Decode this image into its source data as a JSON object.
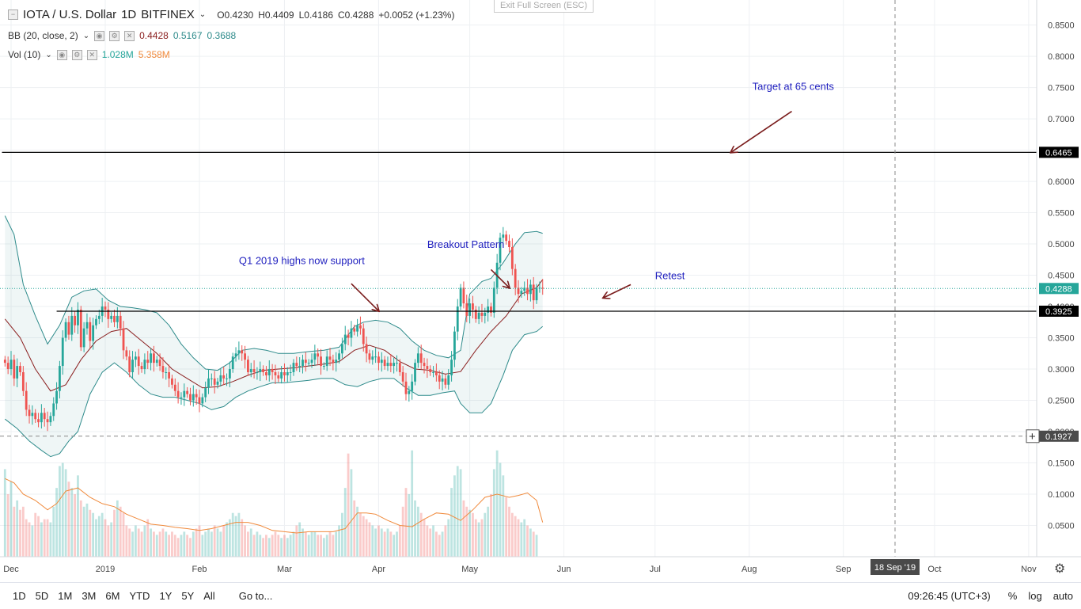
{
  "header": {
    "symbol": "IOTA / U.S. Dollar",
    "interval": "1D",
    "exchange": "BITFINEX",
    "open": "O0.4230",
    "high": "H0.4409",
    "low": "L0.4186",
    "close": "C0.4288",
    "change": "+0.0052 (+1.23%)",
    "exit_fullscreen": "Exit Full Screen (ESC)"
  },
  "indicators": {
    "bb": {
      "label": "BB (20, close, 2)",
      "v1": "0.4428",
      "v2": "0.5167",
      "v3": "0.3688"
    },
    "vol": {
      "label": "Vol (10)",
      "v1": "1.028M",
      "v2": "5.358M"
    }
  },
  "annotations": {
    "target": "Target at 65 cents",
    "breakout": "Breakout Pattern",
    "q1": "Q1 2019 highs now support",
    "retest": "Retest"
  },
  "bottom_bar": {
    "timeframes": [
      "1D",
      "5D",
      "1M",
      "3M",
      "6M",
      "YTD",
      "1Y",
      "5Y",
      "All"
    ],
    "goto": "Go to...",
    "time": "09:26:45 (UTC+3)",
    "percent": "%",
    "log": "log",
    "auto": "auto"
  },
  "colors": {
    "up": "#26a69a",
    "down": "#ef5350",
    "band": "#2e8b8b",
    "basis": "#8b2020",
    "vol_ma": "#f08a3c",
    "annotation": "#1f1fbf",
    "arrow": "#7a1c1c"
  },
  "chart_data": {
    "type": "candlestick",
    "y_range": [
      0.0,
      0.89
    ],
    "y_ticks": [
      "0.8500",
      "0.8000",
      "0.7500",
      "0.7000",
      "0.6500",
      "0.6000",
      "0.5500",
      "0.5000",
      "0.4500",
      "0.4000",
      "0.3500",
      "0.3000",
      "0.2500",
      "0.2000",
      "0.1500",
      "0.1000",
      "0.0500"
    ],
    "x_ticks": [
      "Dec",
      "2019",
      "Feb",
      "Mar",
      "Apr",
      "May",
      "Jun",
      "Jul",
      "Aug",
      "Sep",
      "Oct",
      "Nov"
    ],
    "x_tick_dates": [
      "2018-12-01",
      "2019-01-01",
      "2019-02-01",
      "2019-03-01",
      "2019-04-01",
      "2019-05-01",
      "2019-06-01",
      "2019-07-01",
      "2019-08-01",
      "2019-09-01",
      "2019-10-01",
      "2019-11-01"
    ],
    "crosshair_date_label": "18 Sep '19",
    "crosshair_price_label": "0.1927",
    "crosshair_date": "2019-09-18",
    "crosshair_price": 0.1927,
    "last_price_label": "0.4288",
    "last_price": 0.4288,
    "levels": [
      {
        "price": 0.6465,
        "label": "0.6465",
        "from": "2018-11-28",
        "to": "2019-11-10"
      },
      {
        "price": 0.3925,
        "label": "0.3925",
        "from": "2018-12-16",
        "to": "2019-11-10"
      }
    ],
    "candle_start": "2018-11-29",
    "closes": [
      0.31,
      0.3,
      0.315,
      0.285,
      0.305,
      0.295,
      0.265,
      0.235,
      0.225,
      0.23,
      0.22,
      0.215,
      0.23,
      0.22,
      0.215,
      0.225,
      0.245,
      0.265,
      0.305,
      0.35,
      0.375,
      0.355,
      0.385,
      0.37,
      0.395,
      0.335,
      0.365,
      0.375,
      0.345,
      0.37,
      0.38,
      0.385,
      0.4,
      0.395,
      0.38,
      0.385,
      0.375,
      0.385,
      0.365,
      0.33,
      0.32,
      0.295,
      0.315,
      0.32,
      0.305,
      0.3,
      0.315,
      0.31,
      0.325,
      0.31,
      0.315,
      0.305,
      0.295,
      0.295,
      0.285,
      0.275,
      0.265,
      0.255,
      0.255,
      0.265,
      0.26,
      0.25,
      0.26,
      0.255,
      0.245,
      0.255,
      0.27,
      0.285,
      0.285,
      0.275,
      0.28,
      0.29,
      0.285,
      0.285,
      0.3,
      0.32,
      0.325,
      0.33,
      0.325,
      0.315,
      0.295,
      0.3,
      0.295,
      0.295,
      0.3,
      0.295,
      0.29,
      0.3,
      0.295,
      0.29,
      0.285,
      0.295,
      0.29,
      0.295,
      0.295,
      0.31,
      0.305,
      0.305,
      0.315,
      0.31,
      0.31,
      0.315,
      0.325,
      0.32,
      0.305,
      0.305,
      0.32,
      0.315,
      0.31,
      0.315,
      0.325,
      0.34,
      0.355,
      0.35,
      0.365,
      0.36,
      0.37,
      0.365,
      0.34,
      0.325,
      0.315,
      0.32,
      0.32,
      0.31,
      0.315,
      0.305,
      0.31,
      0.305,
      0.31,
      0.31,
      0.295,
      0.28,
      0.26,
      0.265,
      0.28,
      0.31,
      0.325,
      0.31,
      0.305,
      0.3,
      0.295,
      0.295,
      0.29,
      0.28,
      0.285,
      0.275,
      0.29,
      0.315,
      0.36,
      0.4,
      0.43,
      0.405,
      0.385,
      0.405,
      0.395,
      0.38,
      0.39,
      0.385,
      0.39,
      0.4,
      0.39,
      0.43,
      0.47,
      0.51,
      0.515,
      0.505,
      0.495,
      0.46,
      0.43,
      0.42,
      0.425,
      0.43,
      0.42,
      0.435,
      0.41,
      0.43,
      0.43,
      0.4288
    ],
    "basis": [
      [
        0,
        0.38
      ],
      [
        5,
        0.35
      ],
      [
        10,
        0.3
      ],
      [
        15,
        0.265
      ],
      [
        20,
        0.275
      ],
      [
        25,
        0.315
      ],
      [
        30,
        0.345
      ],
      [
        35,
        0.36
      ],
      [
        40,
        0.365
      ],
      [
        45,
        0.345
      ],
      [
        50,
        0.325
      ],
      [
        55,
        0.3
      ],
      [
        60,
        0.285
      ],
      [
        65,
        0.27
      ],
      [
        70,
        0.272
      ],
      [
        75,
        0.28
      ],
      [
        80,
        0.29
      ],
      [
        85,
        0.298
      ],
      [
        90,
        0.3
      ],
      [
        95,
        0.302
      ],
      [
        100,
        0.305
      ],
      [
        105,
        0.308
      ],
      [
        110,
        0.312
      ],
      [
        115,
        0.33
      ],
      [
        120,
        0.338
      ],
      [
        125,
        0.33
      ],
      [
        130,
        0.312
      ],
      [
        135,
        0.3
      ],
      [
        140,
        0.298
      ],
      [
        145,
        0.292
      ],
      [
        150,
        0.296
      ],
      [
        155,
        0.33
      ],
      [
        160,
        0.36
      ],
      [
        165,
        0.385
      ],
      [
        170,
        0.42
      ],
      [
        175,
        0.43
      ],
      [
        177,
        0.443
      ]
    ],
    "upper": [
      [
        0,
        0.545
      ],
      [
        3,
        0.515
      ],
      [
        6,
        0.435
      ],
      [
        10,
        0.385
      ],
      [
        14,
        0.34
      ],
      [
        18,
        0.37
      ],
      [
        22,
        0.415
      ],
      [
        26,
        0.425
      ],
      [
        30,
        0.428
      ],
      [
        34,
        0.41
      ],
      [
        38,
        0.4
      ],
      [
        42,
        0.398
      ],
      [
        46,
        0.395
      ],
      [
        50,
        0.39
      ],
      [
        54,
        0.37
      ],
      [
        58,
        0.34
      ],
      [
        62,
        0.318
      ],
      [
        66,
        0.3
      ],
      [
        70,
        0.298
      ],
      [
        74,
        0.31
      ],
      [
        78,
        0.33
      ],
      [
        82,
        0.333
      ],
      [
        86,
        0.33
      ],
      [
        90,
        0.325
      ],
      [
        95,
        0.325
      ],
      [
        100,
        0.328
      ],
      [
        105,
        0.33
      ],
      [
        110,
        0.335
      ],
      [
        115,
        0.368
      ],
      [
        118,
        0.375
      ],
      [
        122,
        0.378
      ],
      [
        126,
        0.375
      ],
      [
        130,
        0.365
      ],
      [
        134,
        0.345
      ],
      [
        138,
        0.33
      ],
      [
        142,
        0.322
      ],
      [
        146,
        0.318
      ],
      [
        150,
        0.33
      ],
      [
        153,
        0.42
      ],
      [
        157,
        0.44
      ],
      [
        160,
        0.445
      ],
      [
        164,
        0.47
      ],
      [
        168,
        0.5
      ],
      [
        171,
        0.518
      ],
      [
        175,
        0.52
      ],
      [
        177,
        0.517
      ]
    ],
    "lower": [
      [
        0,
        0.22
      ],
      [
        4,
        0.205
      ],
      [
        8,
        0.185
      ],
      [
        12,
        0.17
      ],
      [
        15,
        0.16
      ],
      [
        18,
        0.165
      ],
      [
        21,
        0.185
      ],
      [
        24,
        0.2
      ],
      [
        28,
        0.26
      ],
      [
        32,
        0.295
      ],
      [
        36,
        0.31
      ],
      [
        40,
        0.295
      ],
      [
        44,
        0.275
      ],
      [
        48,
        0.26
      ],
      [
        52,
        0.255
      ],
      [
        56,
        0.255
      ],
      [
        60,
        0.25
      ],
      [
        64,
        0.245
      ],
      [
        68,
        0.235
      ],
      [
        72,
        0.24
      ],
      [
        76,
        0.255
      ],
      [
        80,
        0.265
      ],
      [
        84,
        0.272
      ],
      [
        88,
        0.278
      ],
      [
        92,
        0.278
      ],
      [
        96,
        0.28
      ],
      [
        100,
        0.282
      ],
      [
        104,
        0.285
      ],
      [
        108,
        0.285
      ],
      [
        112,
        0.275
      ],
      [
        116,
        0.272
      ],
      [
        120,
        0.28
      ],
      [
        124,
        0.285
      ],
      [
        128,
        0.285
      ],
      [
        132,
        0.27
      ],
      [
        136,
        0.258
      ],
      [
        140,
        0.258
      ],
      [
        144,
        0.262
      ],
      [
        148,
        0.265
      ],
      [
        150,
        0.245
      ],
      [
        153,
        0.23
      ],
      [
        157,
        0.23
      ],
      [
        160,
        0.245
      ],
      [
        164,
        0.29
      ],
      [
        167,
        0.33
      ],
      [
        171,
        0.355
      ],
      [
        175,
        0.36
      ],
      [
        177,
        0.368
      ]
    ],
    "volume": [
      0.14,
      0.1,
      0.12,
      0.08,
      0.09,
      0.075,
      0.08,
      0.06,
      0.055,
      0.05,
      0.07,
      0.065,
      0.055,
      0.06,
      0.06,
      0.055,
      0.08,
      0.11,
      0.145,
      0.15,
      0.14,
      0.12,
      0.11,
      0.1,
      0.13,
      0.09,
      0.08,
      0.085,
      0.075,
      0.07,
      0.06,
      0.065,
      0.07,
      0.06,
      0.05,
      0.055,
      0.075,
      0.09,
      0.08,
      0.07,
      0.05,
      0.045,
      0.04,
      0.05,
      0.045,
      0.04,
      0.05,
      0.06,
      0.045,
      0.04,
      0.035,
      0.04,
      0.045,
      0.04,
      0.035,
      0.04,
      0.035,
      0.03,
      0.035,
      0.04,
      0.035,
      0.03,
      0.04,
      0.045,
      0.05,
      0.035,
      0.04,
      0.045,
      0.04,
      0.05,
      0.045,
      0.04,
      0.05,
      0.055,
      0.06,
      0.07,
      0.065,
      0.07,
      0.06,
      0.05,
      0.04,
      0.045,
      0.035,
      0.04,
      0.035,
      0.03,
      0.035,
      0.03,
      0.035,
      0.04,
      0.035,
      0.03,
      0.035,
      0.03,
      0.035,
      0.04,
      0.05,
      0.055,
      0.045,
      0.04,
      0.035,
      0.04,
      0.04,
      0.035,
      0.035,
      0.03,
      0.035,
      0.04,
      0.035,
      0.04,
      0.05,
      0.07,
      0.11,
      0.165,
      0.14,
      0.09,
      0.08,
      0.07,
      0.065,
      0.06,
      0.055,
      0.05,
      0.045,
      0.05,
      0.045,
      0.04,
      0.045,
      0.04,
      0.035,
      0.04,
      0.05,
      0.08,
      0.11,
      0.1,
      0.17,
      0.09,
      0.08,
      0.07,
      0.06,
      0.05,
      0.045,
      0.05,
      0.04,
      0.035,
      0.04,
      0.05,
      0.06,
      0.11,
      0.13,
      0.145,
      0.14,
      0.09,
      0.08,
      0.075,
      0.07,
      0.06,
      0.055,
      0.06,
      0.07,
      0.08,
      0.1,
      0.14,
      0.17,
      0.15,
      0.13,
      0.095,
      0.08,
      0.07,
      0.065,
      0.06,
      0.055,
      0.06,
      0.05,
      0.045,
      0.04,
      0.035
    ],
    "vol_ma": [
      [
        0,
        0.125
      ],
      [
        3,
        0.118
      ],
      [
        6,
        0.1
      ],
      [
        10,
        0.09
      ],
      [
        14,
        0.075
      ],
      [
        17,
        0.085
      ],
      [
        20,
        0.105
      ],
      [
        24,
        0.11
      ],
      [
        28,
        0.095
      ],
      [
        32,
        0.085
      ],
      [
        36,
        0.08
      ],
      [
        40,
        0.068
      ],
      [
        44,
        0.06
      ],
      [
        48,
        0.052
      ],
      [
        52,
        0.05
      ],
      [
        56,
        0.047
      ],
      [
        60,
        0.045
      ],
      [
        64,
        0.042
      ],
      [
        68,
        0.045
      ],
      [
        72,
        0.05
      ],
      [
        76,
        0.055
      ],
      [
        80,
        0.055
      ],
      [
        84,
        0.05
      ],
      [
        88,
        0.042
      ],
      [
        92,
        0.04
      ],
      [
        96,
        0.038
      ],
      [
        100,
        0.04
      ],
      [
        104,
        0.04
      ],
      [
        108,
        0.04
      ],
      [
        112,
        0.045
      ],
      [
        116,
        0.07
      ],
      [
        119,
        0.07
      ],
      [
        122,
        0.068
      ],
      [
        126,
        0.058
      ],
      [
        130,
        0.05
      ],
      [
        134,
        0.048
      ],
      [
        138,
        0.06
      ],
      [
        142,
        0.07
      ],
      [
        146,
        0.068
      ],
      [
        150,
        0.058
      ],
      [
        154,
        0.075
      ],
      [
        158,
        0.095
      ],
      [
        162,
        0.1
      ],
      [
        166,
        0.095
      ],
      [
        169,
        0.098
      ],
      [
        172,
        0.102
      ],
      [
        175,
        0.09
      ],
      [
        177,
        0.055
      ]
    ],
    "annotation_arrows": [
      {
        "from": [
          "2019-08-15",
          0.712
        ],
        "to": [
          "2019-07-26",
          0.6465
        ]
      },
      {
        "from": [
          "2019-03-23",
          0.4365
        ],
        "to": [
          "2019-04-01",
          0.393
        ]
      },
      {
        "from": [
          "2019-05-08",
          0.459
        ],
        "to": [
          "2019-05-14",
          0.43
        ]
      },
      {
        "from": [
          "2019-06-23",
          0.435
        ],
        "to": [
          "2019-06-14",
          0.414
        ]
      }
    ]
  }
}
